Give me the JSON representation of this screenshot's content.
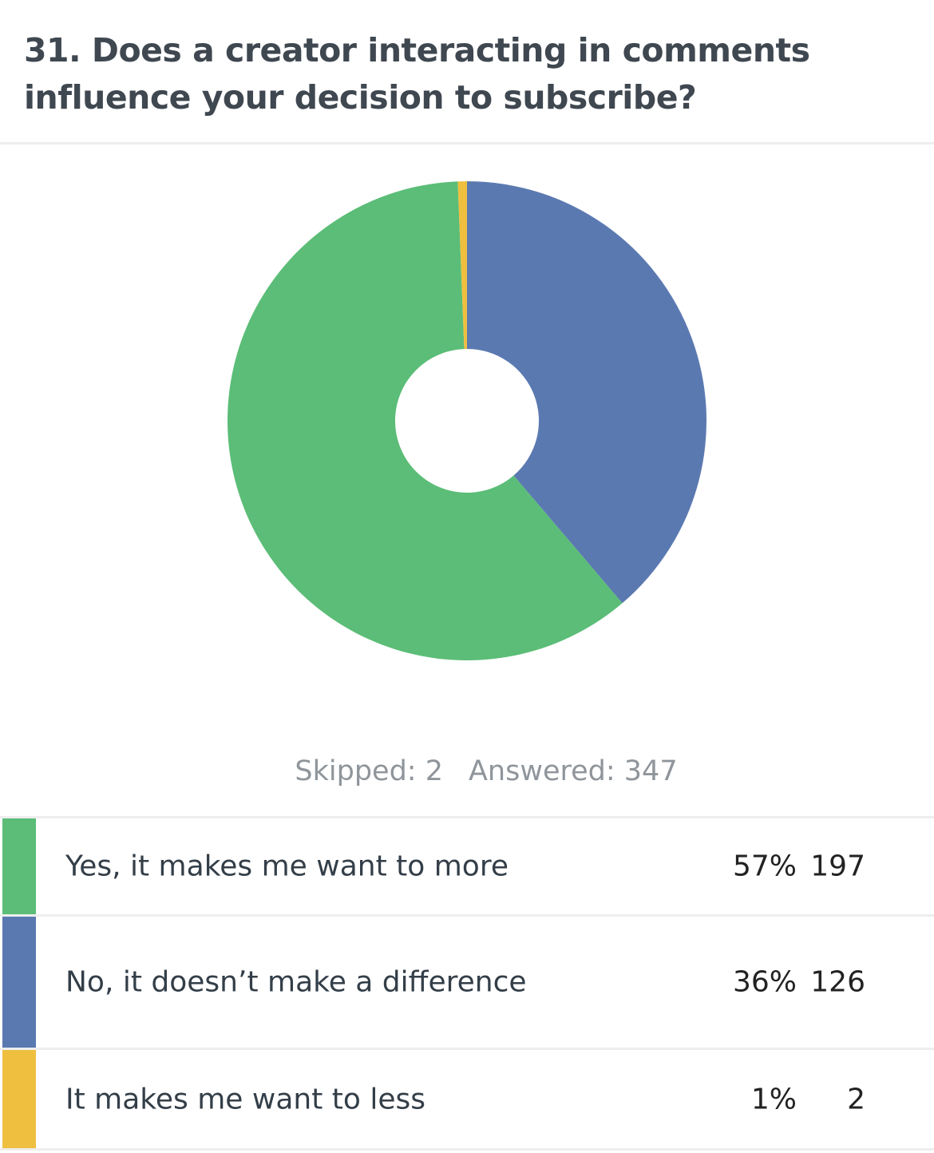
{
  "question": {
    "title": "31. Does a creator interacting in comments influence your decision to subscribe?"
  },
  "stats": {
    "skipped": "Skipped: 2",
    "answered": "Answered: 347"
  },
  "colors": {
    "green": "#5bbd77",
    "blue": "#5b79b1",
    "yellow": "#efbf3f",
    "divider": "#eeeeee",
    "title_text": "#3f4750",
    "muted_text": "#8f959b"
  },
  "answers": [
    {
      "label": "Yes, it makes me want to more",
      "percent": "57%",
      "count": "197",
      "color": "#5bbd77"
    },
    {
      "label": "No, it doesn’t make a difference",
      "percent": "36%",
      "count": "126",
      "color": "#5b79b1"
    },
    {
      "label": "It makes me want to less",
      "percent": "1%",
      "count": "2",
      "color": "#efbf3f"
    }
  ],
  "chart_data": {
    "type": "pie",
    "title": "31. Does a creator interacting in comments influence your decision to subscribe?",
    "categories": [
      "Yes, it makes me want to more",
      "No, it doesn’t make a difference",
      "It makes me want to less"
    ],
    "values": [
      197,
      126,
      2
    ],
    "percentages": [
      57,
      36,
      1
    ],
    "colors": [
      "#5bbd77",
      "#5b79b1",
      "#efbf3f"
    ],
    "donut": true,
    "legend": "below"
  }
}
